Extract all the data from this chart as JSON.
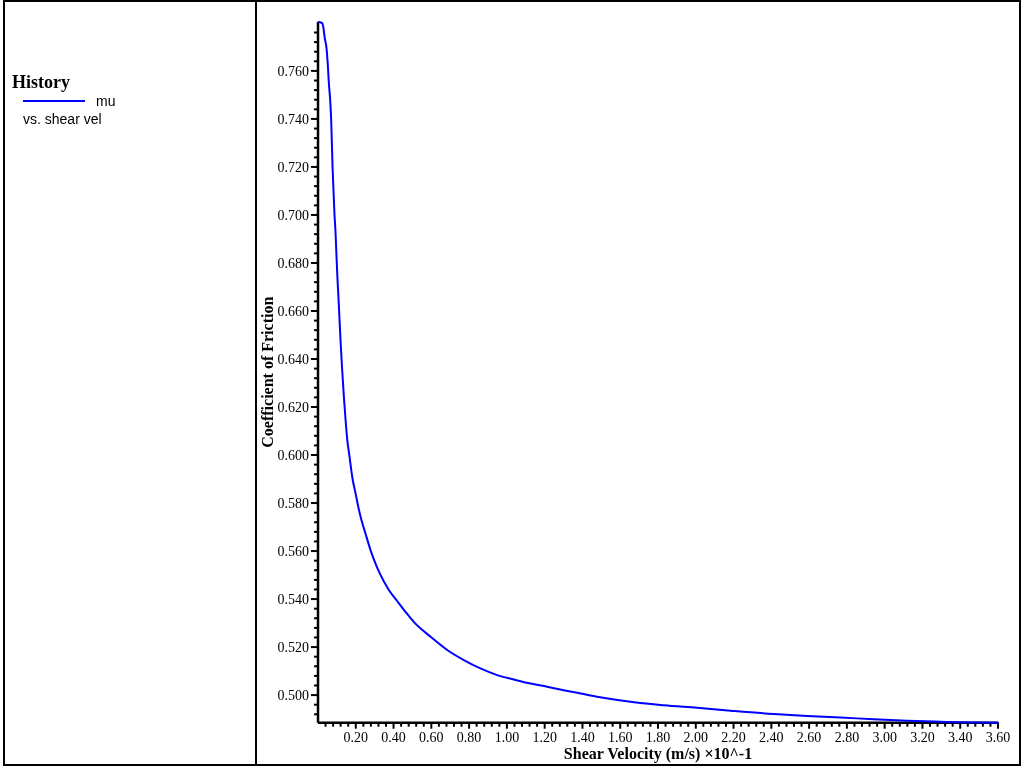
{
  "chart_data": {
    "type": "line",
    "xlabel": "Shear Velocity (m/s) ×10^-1",
    "ylabel": "Coefficient of Friction",
    "legend_title": "History",
    "legend": "left",
    "annotations": [
      "vs. shear vel"
    ],
    "xlim": [
      0,
      3.6
    ],
    "ylim": [
      0.4885,
      0.7805
    ],
    "xticks": [
      {
        "value": 0.04,
        "label": null
      },
      {
        "value": 0.08,
        "label": null
      },
      {
        "value": 0.12,
        "label": null
      },
      {
        "value": 0.16,
        "label": null
      },
      {
        "value": 0.2,
        "label": "0.20"
      },
      {
        "value": 0.24,
        "label": null
      },
      {
        "value": 0.28,
        "label": null
      },
      {
        "value": 0.32,
        "label": null
      },
      {
        "value": 0.36,
        "label": null
      },
      {
        "value": 0.4,
        "label": "0.40"
      },
      {
        "value": 0.44,
        "label": null
      },
      {
        "value": 0.48,
        "label": null
      },
      {
        "value": 0.52,
        "label": null
      },
      {
        "value": 0.56,
        "label": null
      },
      {
        "value": 0.6,
        "label": "0.60"
      },
      {
        "value": 0.64,
        "label": null
      },
      {
        "value": 0.68,
        "label": null
      },
      {
        "value": 0.72,
        "label": null
      },
      {
        "value": 0.76,
        "label": null
      },
      {
        "value": 0.8,
        "label": "0.80"
      },
      {
        "value": 0.84,
        "label": null
      },
      {
        "value": 0.88,
        "label": null
      },
      {
        "value": 0.92,
        "label": null
      },
      {
        "value": 0.96,
        "label": null
      },
      {
        "value": 1,
        "label": "1.00"
      },
      {
        "value": 1.04,
        "label": null
      },
      {
        "value": 1.08,
        "label": null
      },
      {
        "value": 1.12,
        "label": null
      },
      {
        "value": 1.16,
        "label": null
      },
      {
        "value": 1.2,
        "label": "1.20"
      },
      {
        "value": 1.24,
        "label": null
      },
      {
        "value": 1.28,
        "label": null
      },
      {
        "value": 1.32,
        "label": null
      },
      {
        "value": 1.36,
        "label": null
      },
      {
        "value": 1.4,
        "label": "1.40"
      },
      {
        "value": 1.44,
        "label": null
      },
      {
        "value": 1.48,
        "label": null
      },
      {
        "value": 1.52,
        "label": null
      },
      {
        "value": 1.56,
        "label": null
      },
      {
        "value": 1.6,
        "label": "1.60"
      },
      {
        "value": 1.64,
        "label": null
      },
      {
        "value": 1.68,
        "label": null
      },
      {
        "value": 1.72,
        "label": null
      },
      {
        "value": 1.76,
        "label": null
      },
      {
        "value": 1.8,
        "label": "1.80"
      },
      {
        "value": 1.84,
        "label": null
      },
      {
        "value": 1.88,
        "label": null
      },
      {
        "value": 1.92,
        "label": null
      },
      {
        "value": 1.96,
        "label": null
      },
      {
        "value": 2,
        "label": "2.00"
      },
      {
        "value": 2.04,
        "label": null
      },
      {
        "value": 2.08,
        "label": null
      },
      {
        "value": 2.12,
        "label": null
      },
      {
        "value": 2.16,
        "label": null
      },
      {
        "value": 2.2,
        "label": "2.20"
      },
      {
        "value": 2.24,
        "label": null
      },
      {
        "value": 2.28,
        "label": null
      },
      {
        "value": 2.32,
        "label": null
      },
      {
        "value": 2.36,
        "label": null
      },
      {
        "value": 2.4,
        "label": "2.40"
      },
      {
        "value": 2.44,
        "label": null
      },
      {
        "value": 2.48,
        "label": null
      },
      {
        "value": 2.52,
        "label": null
      },
      {
        "value": 2.56,
        "label": null
      },
      {
        "value": 2.6,
        "label": "2.60"
      },
      {
        "value": 2.64,
        "label": null
      },
      {
        "value": 2.68,
        "label": null
      },
      {
        "value": 2.72,
        "label": null
      },
      {
        "value": 2.76,
        "label": null
      },
      {
        "value": 2.8,
        "label": "2.80"
      },
      {
        "value": 2.84,
        "label": null
      },
      {
        "value": 2.88,
        "label": null
      },
      {
        "value": 2.92,
        "label": null
      },
      {
        "value": 2.96,
        "label": null
      },
      {
        "value": 3,
        "label": "3.00"
      },
      {
        "value": 3.04,
        "label": null
      },
      {
        "value": 3.08,
        "label": null
      },
      {
        "value": 3.12,
        "label": null
      },
      {
        "value": 3.16,
        "label": null
      },
      {
        "value": 3.2,
        "label": "3.20"
      },
      {
        "value": 3.24,
        "label": null
      },
      {
        "value": 3.28,
        "label": null
      },
      {
        "value": 3.32,
        "label": null
      },
      {
        "value": 3.36,
        "label": null
      },
      {
        "value": 3.4,
        "label": "3.40"
      },
      {
        "value": 3.44,
        "label": null
      },
      {
        "value": 3.48,
        "label": null
      },
      {
        "value": 3.52,
        "label": null
      },
      {
        "value": 3.56,
        "label": null
      },
      {
        "value": 3.6,
        "label": "3.60"
      }
    ],
    "yticks": [
      {
        "value": 0.492,
        "label": null
      },
      {
        "value": 0.496,
        "label": null
      },
      {
        "value": 0.5,
        "label": "0.500"
      },
      {
        "value": 0.504,
        "label": null
      },
      {
        "value": 0.508,
        "label": null
      },
      {
        "value": 0.512,
        "label": null
      },
      {
        "value": 0.516,
        "label": null
      },
      {
        "value": 0.52,
        "label": "0.520"
      },
      {
        "value": 0.524,
        "label": null
      },
      {
        "value": 0.528,
        "label": null
      },
      {
        "value": 0.532,
        "label": null
      },
      {
        "value": 0.536,
        "label": null
      },
      {
        "value": 0.54,
        "label": "0.540"
      },
      {
        "value": 0.544,
        "label": null
      },
      {
        "value": 0.548,
        "label": null
      },
      {
        "value": 0.552,
        "label": null
      },
      {
        "value": 0.556,
        "label": null
      },
      {
        "value": 0.56,
        "label": "0.560"
      },
      {
        "value": 0.564,
        "label": null
      },
      {
        "value": 0.568,
        "label": null
      },
      {
        "value": 0.572,
        "label": null
      },
      {
        "value": 0.576,
        "label": null
      },
      {
        "value": 0.58,
        "label": "0.580"
      },
      {
        "value": 0.584,
        "label": null
      },
      {
        "value": 0.588,
        "label": null
      },
      {
        "value": 0.592,
        "label": null
      },
      {
        "value": 0.596,
        "label": null
      },
      {
        "value": 0.6,
        "label": "0.600"
      },
      {
        "value": 0.604,
        "label": null
      },
      {
        "value": 0.608,
        "label": null
      },
      {
        "value": 0.612,
        "label": null
      },
      {
        "value": 0.616,
        "label": null
      },
      {
        "value": 0.62,
        "label": "0.620"
      },
      {
        "value": 0.624,
        "label": null
      },
      {
        "value": 0.628,
        "label": null
      },
      {
        "value": 0.632,
        "label": null
      },
      {
        "value": 0.636,
        "label": null
      },
      {
        "value": 0.64,
        "label": "0.640"
      },
      {
        "value": 0.644,
        "label": null
      },
      {
        "value": 0.648,
        "label": null
      },
      {
        "value": 0.652,
        "label": null
      },
      {
        "value": 0.656,
        "label": null
      },
      {
        "value": 0.66,
        "label": "0.660"
      },
      {
        "value": 0.664,
        "label": null
      },
      {
        "value": 0.668,
        "label": null
      },
      {
        "value": 0.672,
        "label": null
      },
      {
        "value": 0.676,
        "label": null
      },
      {
        "value": 0.68,
        "label": "0.680"
      },
      {
        "value": 0.684,
        "label": null
      },
      {
        "value": 0.688,
        "label": null
      },
      {
        "value": 0.692,
        "label": null
      },
      {
        "value": 0.696,
        "label": null
      },
      {
        "value": 0.7,
        "label": "0.700"
      },
      {
        "value": 0.704,
        "label": null
      },
      {
        "value": 0.708,
        "label": null
      },
      {
        "value": 0.712,
        "label": null
      },
      {
        "value": 0.716,
        "label": null
      },
      {
        "value": 0.72,
        "label": "0.720"
      },
      {
        "value": 0.724,
        "label": null
      },
      {
        "value": 0.728,
        "label": null
      },
      {
        "value": 0.732,
        "label": null
      },
      {
        "value": 0.736,
        "label": null
      },
      {
        "value": 0.74,
        "label": "0.740"
      },
      {
        "value": 0.744,
        "label": null
      },
      {
        "value": 0.748,
        "label": null
      },
      {
        "value": 0.752,
        "label": null
      },
      {
        "value": 0.756,
        "label": null
      },
      {
        "value": 0.76,
        "label": "0.760"
      },
      {
        "value": 0.764,
        "label": null
      },
      {
        "value": 0.768,
        "label": null
      },
      {
        "value": 0.772,
        "label": null
      },
      {
        "value": 0.776,
        "label": null
      }
    ],
    "x": [
      0.005,
      0.022,
      0.029,
      0.036,
      0.045,
      0.052,
      0.057,
      0.065,
      0.07,
      0.077,
      0.082,
      0.087,
      0.093,
      0.098,
      0.103,
      0.109,
      0.114,
      0.121,
      0.128,
      0.137,
      0.146,
      0.155,
      0.167,
      0.176,
      0.184,
      0.199,
      0.213,
      0.23,
      0.251,
      0.278,
      0.304,
      0.327,
      0.375,
      0.419,
      0.463,
      0.507,
      0.596,
      0.684,
      0.772,
      0.86,
      0.949,
      1.037,
      1.125,
      1.213,
      1.301,
      1.39,
      1.478,
      1.654,
      1.831,
      2.007,
      2.184,
      2.413,
      2.59,
      2.766,
      2.942,
      3.119,
      3.295,
      3.472,
      3.6
    ],
    "series": [
      {
        "name": "mu",
        "color": "#0000ff",
        "values": [
          0.7804,
          0.7799,
          0.7778,
          0.7736,
          0.7695,
          0.7625,
          0.7555,
          0.7472,
          0.7389,
          0.7201,
          0.7104,
          0.7007,
          0.6924,
          0.6826,
          0.6736,
          0.6646,
          0.6563,
          0.6451,
          0.6354,
          0.6243,
          0.6146,
          0.6063,
          0.5993,
          0.5938,
          0.5896,
          0.584,
          0.5785,
          0.5729,
          0.5674,
          0.5604,
          0.5549,
          0.5507,
          0.5438,
          0.5392,
          0.5347,
          0.5305,
          0.5243,
          0.5188,
          0.5146,
          0.5111,
          0.5083,
          0.5065,
          0.5048,
          0.5035,
          0.502,
          0.5007,
          0.4993,
          0.4972,
          0.4958,
          0.4947,
          0.4935,
          0.4921,
          0.4913,
          0.4907,
          0.4899,
          0.4893,
          0.4889,
          0.4886,
          0.4885
        ]
      }
    ]
  }
}
